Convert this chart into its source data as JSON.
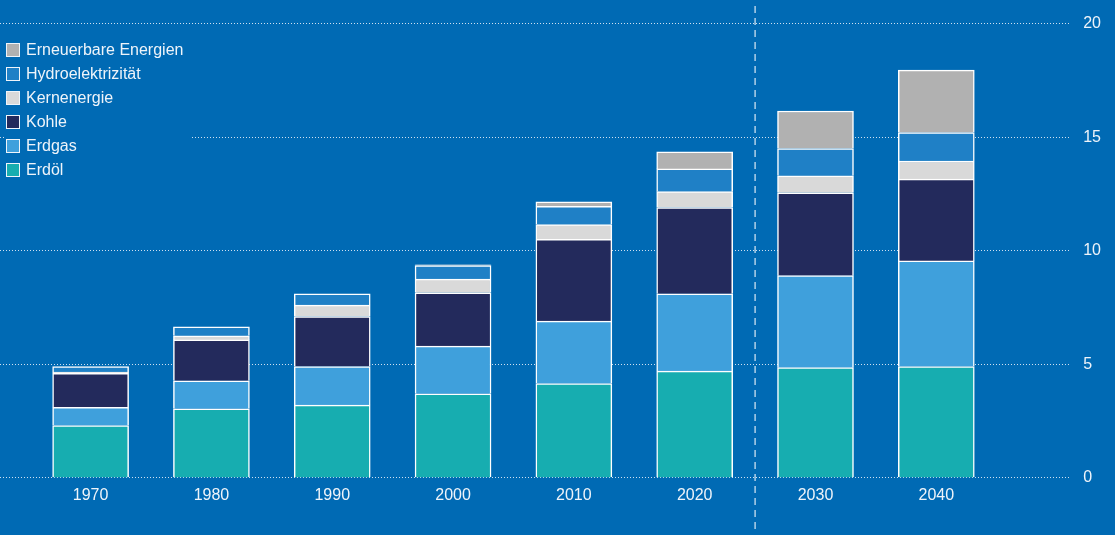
{
  "chart_data": {
    "type": "bar",
    "stacked": true,
    "x": [
      1970,
      1980,
      1990,
      2000,
      2010,
      2020,
      2030,
      2040
    ],
    "xlim": [
      1962.5,
      2051
    ],
    "xticks": [
      1970,
      1980,
      1990,
      2000,
      2010,
      2020,
      2030,
      2040
    ],
    "ylim": [
      0,
      20
    ],
    "yticks": [
      0,
      5,
      10,
      15,
      20
    ],
    "grid": "y",
    "legend": "top left",
    "ref_lines": [
      {
        "axis": "x",
        "value": 2025,
        "line_style": "dashed",
        "color": "#dce9f5"
      }
    ],
    "series": [
      {
        "name": "Erdöl",
        "color": "#17adb0",
        "values": [
          2.3,
          3.04,
          3.2,
          3.7,
          4.15,
          4.7,
          4.85,
          4.9
        ]
      },
      {
        "name": "Erdgas",
        "color": "#3fa0dc",
        "values": [
          0.8,
          1.23,
          1.7,
          2.1,
          2.75,
          3.4,
          4.05,
          4.65
        ]
      },
      {
        "name": "Kohle",
        "color": "#232a5c",
        "values": [
          1.5,
          1.8,
          2.2,
          2.35,
          3.6,
          3.8,
          3.65,
          3.6
        ]
      },
      {
        "name": "Kernenergie",
        "color": "#d9d9d9",
        "values": [
          0.05,
          0.18,
          0.5,
          0.6,
          0.65,
          0.7,
          0.75,
          0.8
        ]
      },
      {
        "name": "Hydroelektrizität",
        "color": "#1f80c6",
        "values": [
          0.25,
          0.4,
          0.5,
          0.6,
          0.8,
          1.0,
          1.2,
          1.25
        ]
      },
      {
        "name": "Erneuerbare Energien",
        "color": "#b1b1b1",
        "values": [
          0,
          0,
          0,
          0.03,
          0.2,
          0.75,
          1.65,
          2.75
        ]
      }
    ]
  }
}
